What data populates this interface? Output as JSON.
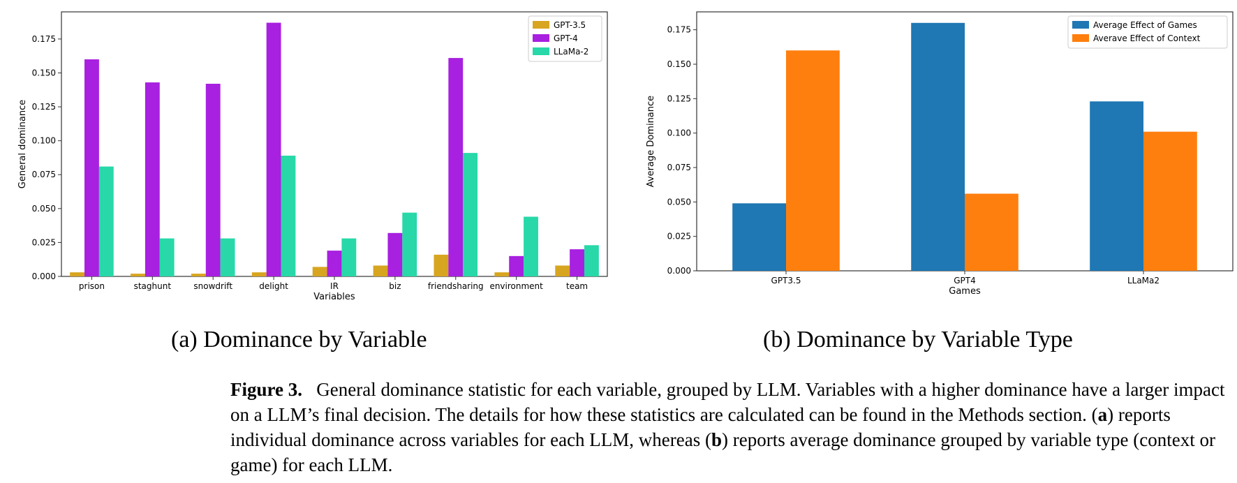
{
  "chart_data": [
    {
      "type": "bar",
      "ylabel": "General dominance",
      "xlabel": "Variables",
      "ylim": [
        0,
        0.195
      ],
      "yticks": [
        "0.000",
        "0.025",
        "0.050",
        "0.075",
        "0.100",
        "0.125",
        "0.150",
        "0.175"
      ],
      "legend_position": "top-right",
      "categories": [
        "prison",
        "staghunt",
        "snowdrift",
        "delight",
        "IR",
        "biz",
        "friendsharing",
        "environment",
        "team"
      ],
      "series": [
        {
          "name": "GPT-3.5",
          "color": "#d8a520",
          "values": [
            0.003,
            0.002,
            0.002,
            0.003,
            0.007,
            0.008,
            0.016,
            0.003,
            0.008
          ]
        },
        {
          "name": "GPT-4",
          "color": "#a820e0",
          "values": [
            0.16,
            0.143,
            0.142,
            0.187,
            0.019,
            0.032,
            0.161,
            0.015,
            0.02
          ]
        },
        {
          "name": "LLaMa-2",
          "color": "#28d8a8",
          "values": [
            0.081,
            0.028,
            0.028,
            0.089,
            0.028,
            0.047,
            0.091,
            0.044,
            0.023
          ]
        }
      ]
    },
    {
      "type": "bar",
      "ylabel": "Average Dominance",
      "xlabel": "Games",
      "ylim": [
        0,
        0.188
      ],
      "yticks": [
        "0.000",
        "0.025",
        "0.050",
        "0.075",
        "0.100",
        "0.125",
        "0.150",
        "0.175"
      ],
      "legend_position": "top-right",
      "categories": [
        "GPT3.5",
        "GPT4",
        "LLaMa2"
      ],
      "series": [
        {
          "name": "Average Effect of Games",
          "color": "#1f77b4",
          "values": [
            0.049,
            0.18,
            0.123
          ]
        },
        {
          "name": "Averave Effect of Context",
          "color": "#ff7f0e",
          "values": [
            0.16,
            0.056,
            0.101
          ]
        }
      ]
    }
  ],
  "subcaptions": {
    "a": "(a) Dominance by Variable",
    "b": "(b) Dominance by Variable Type"
  },
  "caption": {
    "label": "Figure 3.",
    "part1": "General dominance statistic for each variable, grouped by LLM. Variables with a higher dominance have a larger impact on a LLM’s final decision. The details for how these statistics are calculated can be found in the Methods section. (",
    "bold_a": "a",
    "part2": ") reports individual dominance across variables for each LLM, whereas (",
    "bold_b": "b",
    "part3": ") reports average dominance grouped by variable type (context or game) for each LLM."
  }
}
